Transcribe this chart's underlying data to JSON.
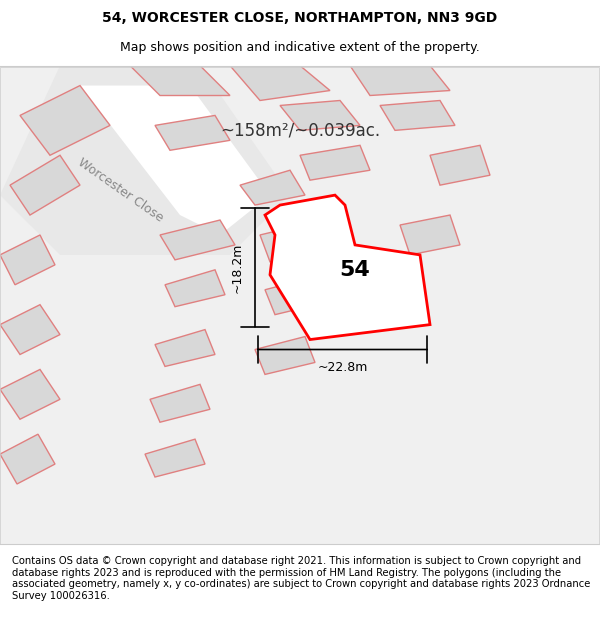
{
  "title_line1": "54, WORCESTER CLOSE, NORTHAMPTON, NN3 9GD",
  "title_line2": "Map shows position and indicative extent of the property.",
  "footer_text": "Contains OS data © Crown copyright and database right 2021. This information is subject to Crown copyright and database rights 2023 and is reproduced with the permission of HM Land Registry. The polygons (including the associated geometry, namely x, y co-ordinates) are subject to Crown copyright and database rights 2023 Ordnance Survey 100026316.",
  "area_label": "~158m²/~0.039ac.",
  "number_label": "54",
  "dim_vertical": "~18.2m",
  "dim_horizontal": "~22.8m",
  "street_label": "Worcester Close",
  "bg_color": "#f5f5f5",
  "road_color": "#e8e8e8",
  "green_area_color": "#d8e8d8",
  "building_fill": "#d8d8d8",
  "building_stroke": "#e08080",
  "highlight_fill": "#ffffff",
  "highlight_stroke": "#ff0000",
  "map_bg": "#ffffff",
  "title_fontsize": 10,
  "subtitle_fontsize": 9,
  "footer_fontsize": 7.2
}
